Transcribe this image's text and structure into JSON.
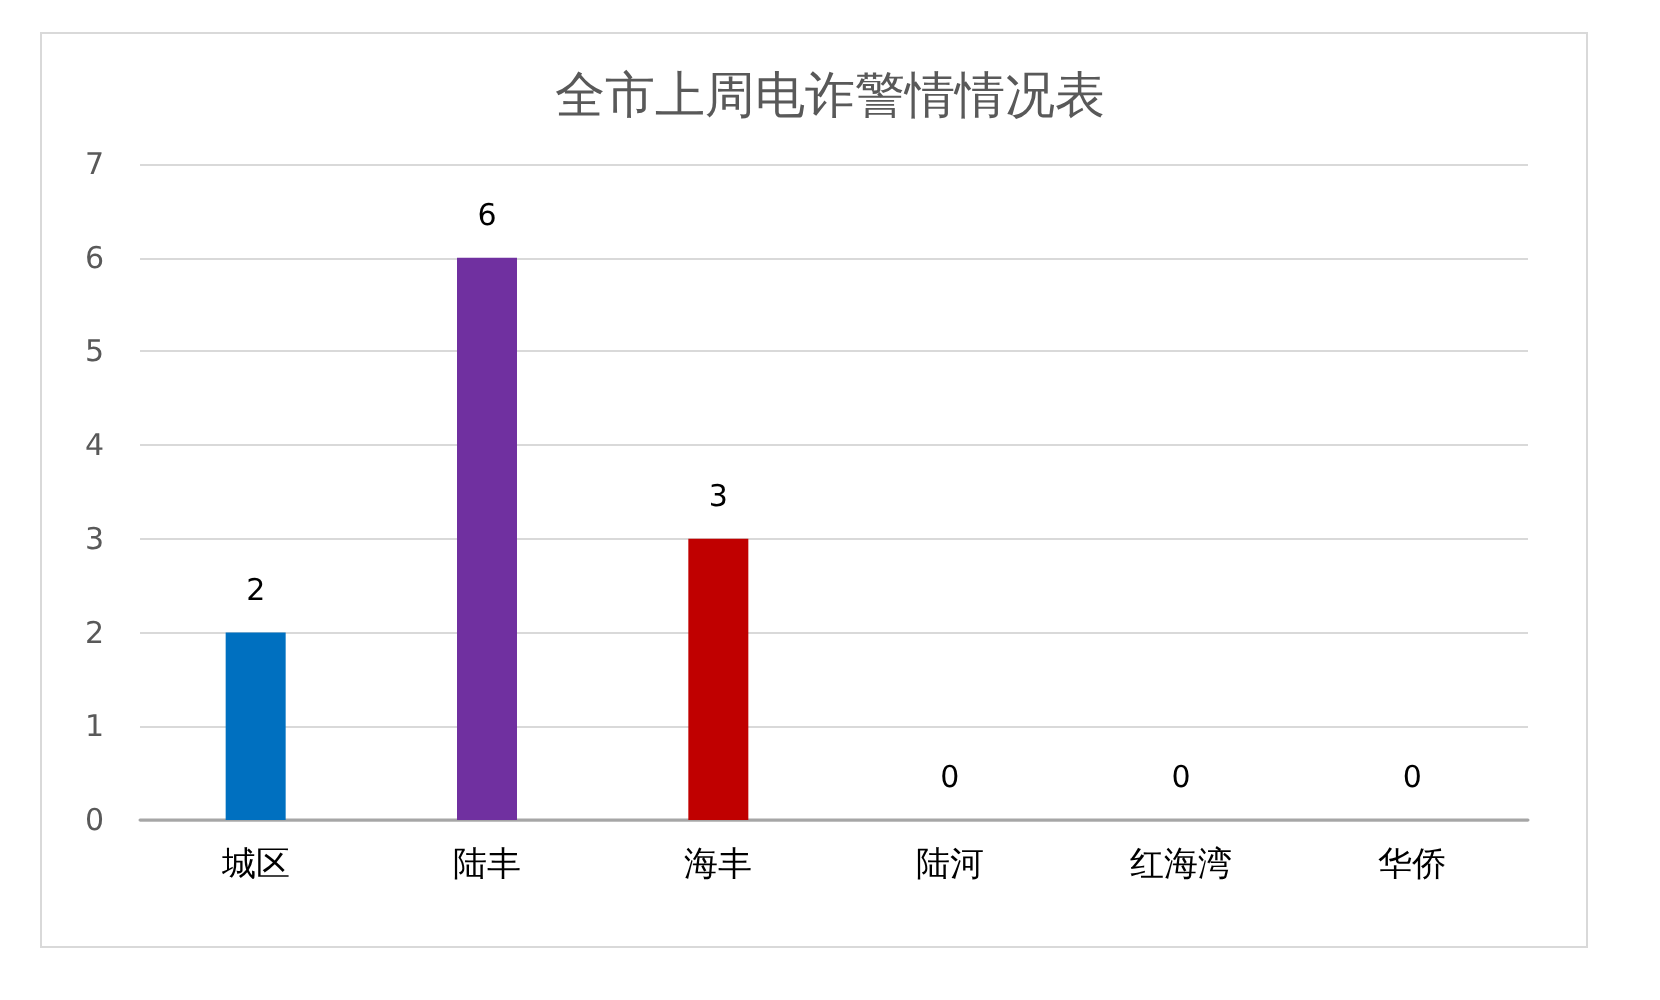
{
  "chart_data": {
    "type": "bar",
    "title": "全市上周电诈警情情况表",
    "categories": [
      "城区",
      "陆丰",
      "海丰",
      "陆河",
      "红海湾",
      "华侨"
    ],
    "values": [
      2,
      6,
      3,
      0,
      0,
      0
    ],
    "colors": [
      "#0070c0",
      "#7030a0",
      "#c00000",
      null,
      null,
      null
    ],
    "ylim": [
      0,
      7
    ],
    "yticks": [
      0,
      1,
      2,
      3,
      4,
      5,
      6,
      7
    ],
    "grid": "y",
    "data_labels": true
  }
}
